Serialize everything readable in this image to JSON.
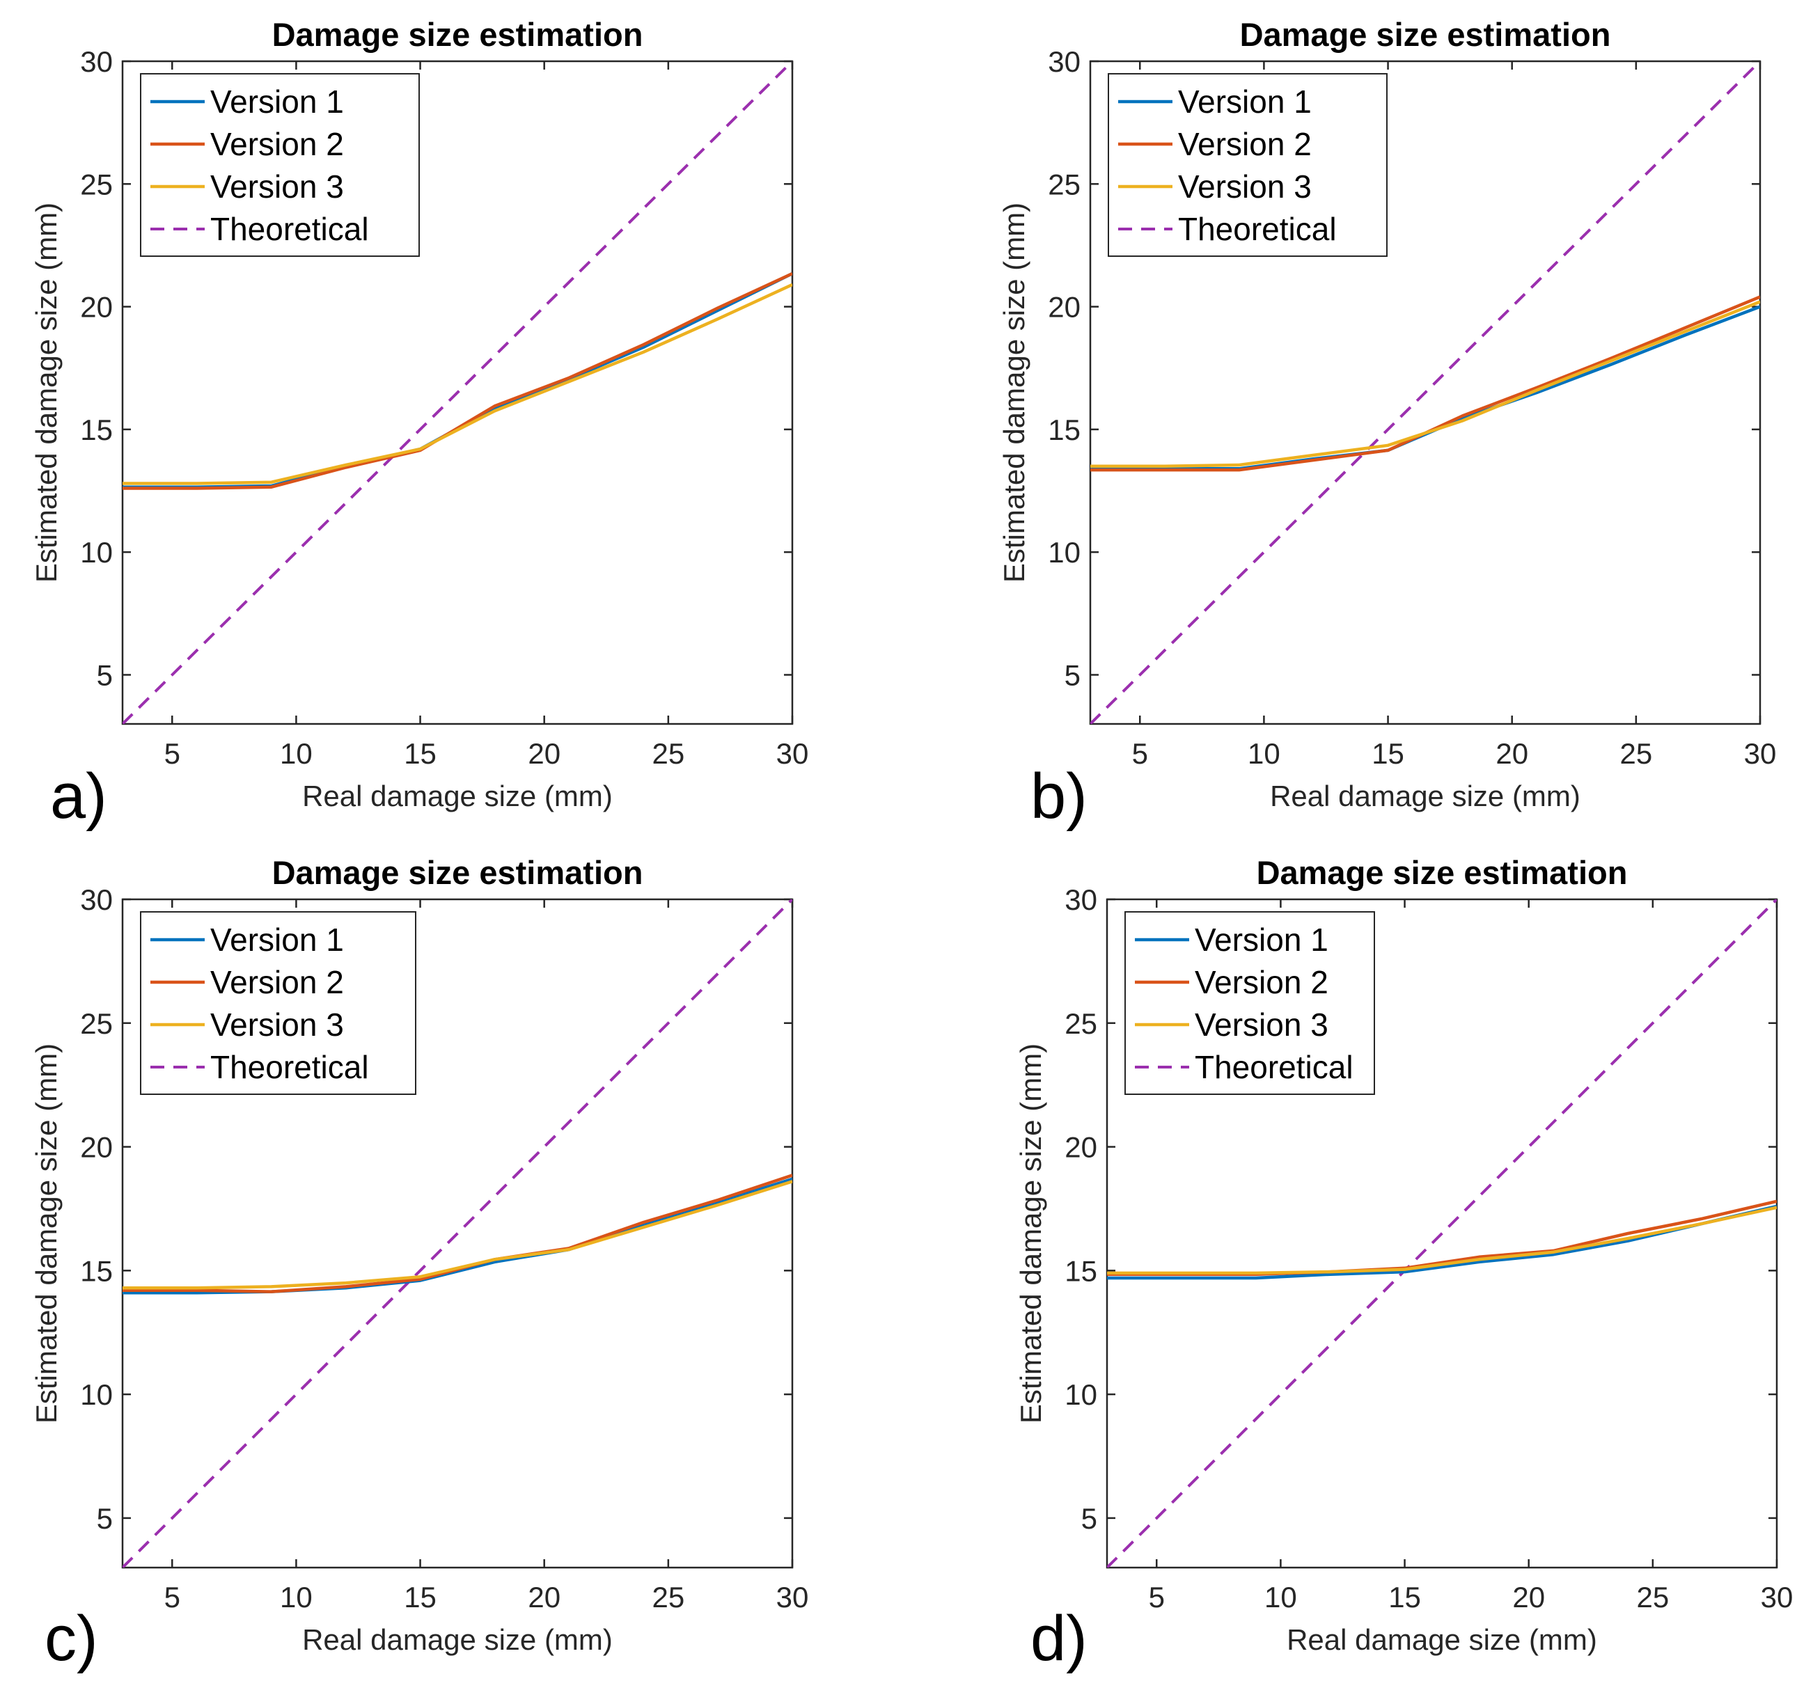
{
  "chart_data": [
    {
      "type": "line",
      "panel_label": "a)",
      "title": "Damage size estimation",
      "xlabel": "Real damage size (mm)",
      "ylabel": "Estimated damage size (mm)",
      "xlim": [
        3,
        30
      ],
      "ylim": [
        3,
        30
      ],
      "xticks": [
        5,
        10,
        15,
        20,
        25,
        30
      ],
      "yticks": [
        5,
        10,
        15,
        20,
        25,
        30
      ],
      "legend_position": "top-left",
      "x": [
        3,
        6,
        9,
        12,
        15,
        18,
        21,
        24,
        27,
        30
      ],
      "series": [
        {
          "name": "Version 1",
          "color": "#0072BD",
          "dash": "solid",
          "values": [
            12.65,
            12.65,
            12.7,
            13.5,
            14.2,
            15.85,
            17.05,
            18.35,
            19.85,
            21.35
          ]
        },
        {
          "name": "Version 2",
          "color": "#D95319",
          "dash": "solid",
          "values": [
            12.6,
            12.6,
            12.65,
            13.45,
            14.15,
            15.95,
            17.1,
            18.45,
            19.95,
            21.35
          ]
        },
        {
          "name": "Version 3",
          "color": "#EDB120",
          "dash": "solid",
          "values": [
            12.8,
            12.8,
            12.85,
            13.55,
            14.2,
            15.75,
            16.95,
            18.15,
            19.5,
            20.9
          ]
        },
        {
          "name": "Theoretical",
          "color": "#9B2FAE",
          "dash": "dashed",
          "x": [
            3,
            30
          ],
          "values": [
            3,
            30
          ]
        }
      ]
    },
    {
      "type": "line",
      "panel_label": "b)",
      "title": "Damage size estimation",
      "xlabel": "Real damage size (mm)",
      "ylabel": "Estimated damage size (mm)",
      "xlim": [
        3,
        30
      ],
      "ylim": [
        3,
        30
      ],
      "xticks": [
        5,
        10,
        15,
        20,
        25,
        30
      ],
      "yticks": [
        5,
        10,
        15,
        20,
        25,
        30
      ],
      "legend_position": "top-left",
      "x": [
        3,
        6,
        9,
        12,
        15,
        18,
        21,
        24,
        27,
        30
      ],
      "series": [
        {
          "name": "Version 1",
          "color": "#0072BD",
          "dash": "solid",
          "values": [
            13.4,
            13.4,
            13.4,
            13.8,
            14.15,
            15.45,
            16.5,
            17.65,
            18.85,
            20.0
          ]
        },
        {
          "name": "Version 2",
          "color": "#D95319",
          "dash": "solid",
          "values": [
            13.35,
            13.35,
            13.35,
            13.75,
            14.15,
            15.55,
            16.7,
            17.9,
            19.15,
            20.4
          ]
        },
        {
          "name": "Version 3",
          "color": "#EDB120",
          "dash": "solid",
          "values": [
            13.5,
            13.5,
            13.55,
            13.95,
            14.35,
            15.35,
            16.6,
            17.8,
            19.0,
            20.2
          ]
        },
        {
          "name": "Theoretical",
          "color": "#9B2FAE",
          "dash": "dashed",
          "x": [
            3,
            30
          ],
          "values": [
            3,
            30
          ]
        }
      ]
    },
    {
      "type": "line",
      "panel_label": "c)",
      "title": "Damage size estimation",
      "xlabel": "Real damage size (mm)",
      "ylabel": "Estimated damage size (mm)",
      "xlim": [
        3,
        30
      ],
      "ylim": [
        3,
        30
      ],
      "xticks": [
        5,
        10,
        15,
        20,
        25,
        30
      ],
      "yticks": [
        5,
        10,
        15,
        20,
        25,
        30
      ],
      "legend_position": "top-left",
      "x": [
        3,
        6,
        9,
        12,
        15,
        18,
        21,
        24,
        27,
        30
      ],
      "series": [
        {
          "name": "Version 1",
          "color": "#0072BD",
          "dash": "solid",
          "values": [
            14.1,
            14.1,
            14.15,
            14.3,
            14.6,
            15.35,
            15.85,
            16.85,
            17.75,
            18.7
          ]
        },
        {
          "name": "Version 2",
          "color": "#D95319",
          "dash": "solid",
          "values": [
            14.2,
            14.2,
            14.15,
            14.35,
            14.65,
            15.45,
            15.9,
            16.95,
            17.85,
            18.85
          ]
        },
        {
          "name": "Version 3",
          "color": "#EDB120",
          "dash": "solid",
          "values": [
            14.3,
            14.3,
            14.35,
            14.5,
            14.75,
            15.45,
            15.85,
            16.75,
            17.65,
            18.6
          ]
        },
        {
          "name": "Theoretical",
          "color": "#9B2FAE",
          "dash": "dashed",
          "x": [
            3,
            30
          ],
          "values": [
            3,
            30
          ]
        }
      ]
    },
    {
      "type": "line",
      "panel_label": "d)",
      "title": "Damage size estimation",
      "xlabel": "Real damage size (mm)",
      "ylabel": "Estimated damage size (mm)",
      "xlim": [
        3,
        30
      ],
      "ylim": [
        3,
        30
      ],
      "xticks": [
        5,
        10,
        15,
        20,
        25,
        30
      ],
      "yticks": [
        5,
        10,
        15,
        20,
        25,
        30
      ],
      "legend_position": "top-left",
      "x": [
        3,
        6,
        9,
        12,
        15,
        18,
        21,
        24,
        27,
        30
      ],
      "series": [
        {
          "name": "Version 1",
          "color": "#0072BD",
          "dash": "solid",
          "values": [
            14.7,
            14.7,
            14.7,
            14.85,
            14.95,
            15.35,
            15.65,
            16.2,
            16.9,
            17.6
          ]
        },
        {
          "name": "Version 2",
          "color": "#D95319",
          "dash": "solid",
          "values": [
            14.85,
            14.85,
            14.85,
            14.95,
            15.1,
            15.55,
            15.8,
            16.5,
            17.1,
            17.8
          ]
        },
        {
          "name": "Version 3",
          "color": "#EDB120",
          "dash": "solid",
          "values": [
            14.9,
            14.9,
            14.9,
            14.95,
            15.05,
            15.45,
            15.75,
            16.3,
            16.9,
            17.55
          ]
        },
        {
          "name": "Theoretical",
          "color": "#9B2FAE",
          "dash": "dashed",
          "x": [
            3,
            30
          ],
          "values": [
            3,
            30
          ]
        }
      ]
    }
  ]
}
